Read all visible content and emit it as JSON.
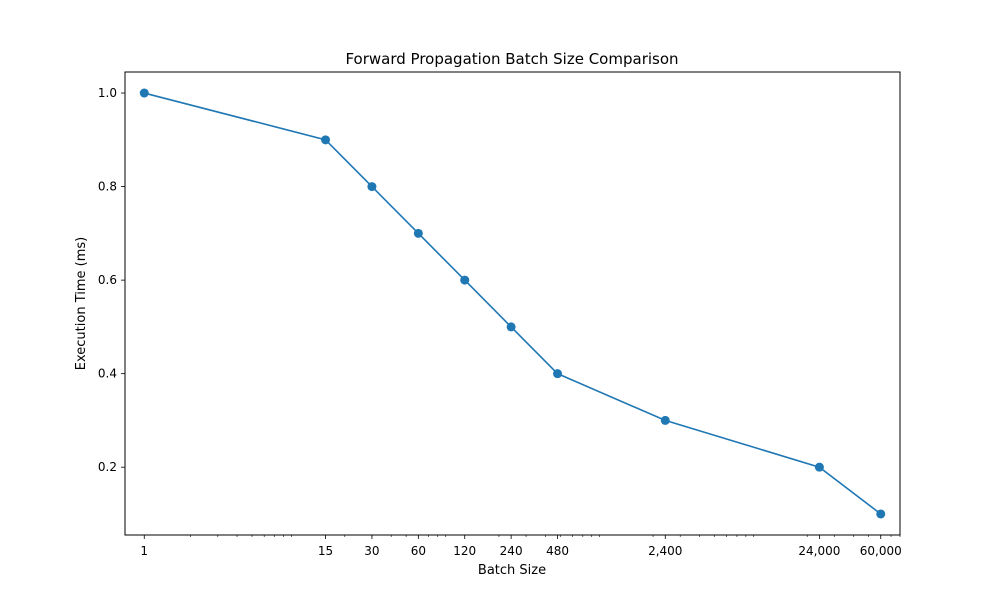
{
  "chart_data": {
    "type": "line",
    "title": "Forward Propagation Batch Size Comparison",
    "xlabel": "Batch Size",
    "ylabel": "Execution Time (ms)",
    "xscale": "log",
    "xlim": [
      0.75,
      80000
    ],
    "ylim": [
      0.055,
      1.045
    ],
    "grid": false,
    "x_tick_labels": [
      "1",
      "15",
      "30",
      "60",
      "120",
      "240",
      "480",
      "2,400",
      "24,000",
      "60,000"
    ],
    "y_ticks": [
      0.2,
      0.4,
      0.6,
      0.8,
      1.0
    ],
    "y_tick_labels": [
      "0.2",
      "0.4",
      "0.6",
      "0.8",
      "1.0"
    ],
    "series": [
      {
        "color": "#1f77b4",
        "marker": "circle",
        "x": [
          1,
          15,
          30,
          60,
          120,
          240,
          480,
          2400,
          24000,
          60000
        ],
        "y": [
          1.0,
          0.9,
          0.8,
          0.7,
          0.6,
          0.5,
          0.4,
          0.3,
          0.2,
          0.1
        ]
      }
    ]
  }
}
